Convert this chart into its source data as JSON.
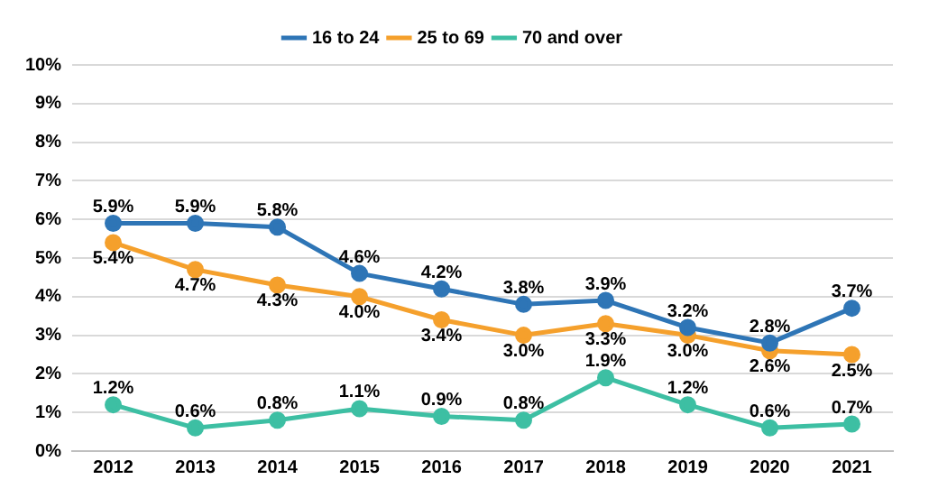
{
  "chart_data": {
    "type": "line",
    "categories": [
      "2012",
      "2013",
      "2014",
      "2015",
      "2016",
      "2017",
      "2018",
      "2019",
      "2020",
      "2021"
    ],
    "series": [
      {
        "name": "16 to 24",
        "color": "#2e75b6",
        "values": [
          5.9,
          5.9,
          5.8,
          4.6,
          4.2,
          3.8,
          3.9,
          3.2,
          2.8,
          3.7
        ],
        "value_labels": [
          "5.9%",
          "5.9%",
          "5.8%",
          "4.6%",
          "4.2%",
          "3.8%",
          "3.9%",
          "3.2%",
          "2.8%",
          "3.7%"
        ]
      },
      {
        "name": "25 to 69",
        "color": "#f5a02c",
        "values": [
          5.4,
          4.7,
          4.3,
          4.0,
          3.4,
          3.0,
          3.3,
          3.0,
          2.6,
          2.5
        ],
        "value_labels": [
          "5.4%",
          "4.7%",
          "4.3%",
          "4.0%",
          "3.4%",
          "3.0%",
          "3.3%",
          "3.0%",
          "2.6%",
          "2.5%"
        ]
      },
      {
        "name": "70 and over",
        "color": "#3dbfa3",
        "values": [
          1.2,
          0.6,
          0.8,
          1.1,
          0.9,
          0.8,
          1.9,
          1.2,
          0.6,
          0.7
        ],
        "value_labels": [
          "1.2%",
          "0.6%",
          "0.8%",
          "1.1%",
          "0.9%",
          "0.8%",
          "1.9%",
          "1.2%",
          "0.6%",
          "0.7%"
        ]
      }
    ],
    "ylim": [
      0,
      10
    ],
    "yticks": [
      {
        "value": 0,
        "label": "0%"
      },
      {
        "value": 1,
        "label": "1%"
      },
      {
        "value": 2,
        "label": "2%"
      },
      {
        "value": 3,
        "label": "3%"
      },
      {
        "value": 4,
        "label": "4%"
      },
      {
        "value": 5,
        "label": "5%"
      },
      {
        "value": 6,
        "label": "6%"
      },
      {
        "value": 7,
        "label": "7%"
      },
      {
        "value": 8,
        "label": "8%"
      },
      {
        "value": 9,
        "label": "9%"
      },
      {
        "value": 10,
        "label": "10%"
      }
    ],
    "grid": "y",
    "legend": "top",
    "marker": "circle",
    "line_style": "solid"
  }
}
